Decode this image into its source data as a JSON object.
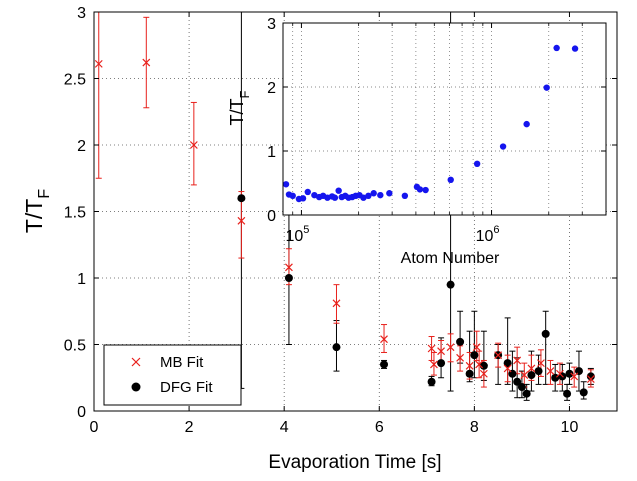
{
  "chart_data": [
    {
      "type": "scatter",
      "title": "",
      "xlabel": "Evaporation Time [s]",
      "ylabel": "T/T",
      "ylabel_subscript": "F",
      "xlim": [
        0,
        11
      ],
      "ylim": [
        0,
        3
      ],
      "xticks": [
        "0",
        "2",
        "4",
        "6",
        "8",
        "10"
      ],
      "yticks": [
        "0",
        "0.5",
        "1",
        "1.5",
        "2",
        "2.5",
        "3"
      ],
      "grid": true,
      "legend": "bottom-left",
      "colors": {
        "mb": "#e8211c",
        "dfg": "#000000"
      },
      "series": [
        {
          "name": "MB Fit",
          "marker": "x",
          "points": [
            {
              "x": 0.1,
              "y": 2.61,
              "lo": 1.75,
              "hi": 3.0
            },
            {
              "x": 1.1,
              "y": 2.62,
              "lo": 2.28,
              "hi": 2.96
            },
            {
              "x": 2.1,
              "y": 2.0,
              "lo": 1.7,
              "hi": 2.32
            },
            {
              "x": 3.1,
              "y": 1.43,
              "lo": 1.15,
              "hi": 1.65
            },
            {
              "x": 4.1,
              "y": 1.08,
              "lo": 0.95,
              "hi": 1.22
            },
            {
              "x": 5.1,
              "y": 0.81,
              "lo": 0.66,
              "hi": 0.95
            },
            {
              "x": 6.1,
              "y": 0.54,
              "lo": 0.44,
              "hi": 0.65
            },
            {
              "x": 7.1,
              "y": 0.47,
              "lo": 0.38,
              "hi": 0.56
            },
            {
              "x": 7.15,
              "y": 0.35,
              "lo": 0.27,
              "hi": 0.44
            },
            {
              "x": 7.3,
              "y": 0.45,
              "lo": 0.37,
              "hi": 0.53
            },
            {
              "x": 7.5,
              "y": 0.48,
              "lo": 0.37,
              "hi": 0.58
            },
            {
              "x": 7.7,
              "y": 0.4,
              "lo": 0.3,
              "hi": 0.49
            },
            {
              "x": 7.9,
              "y": 0.34,
              "lo": 0.24,
              "hi": 0.44
            },
            {
              "x": 8.05,
              "y": 0.48,
              "lo": 0.38,
              "hi": 0.6
            },
            {
              "x": 8.1,
              "y": 0.35,
              "lo": 0.25,
              "hi": 0.45
            },
            {
              "x": 8.2,
              "y": 0.28,
              "lo": 0.18,
              "hi": 0.38
            },
            {
              "x": 8.5,
              "y": 0.42,
              "lo": 0.33,
              "hi": 0.51
            },
            {
              "x": 8.7,
              "y": 0.32,
              "lo": 0.22,
              "hi": 0.42
            },
            {
              "x": 8.9,
              "y": 0.38,
              "lo": 0.28,
              "hi": 0.48
            },
            {
              "x": 9.05,
              "y": 0.27,
              "lo": 0.18,
              "hi": 0.36
            },
            {
              "x": 9.2,
              "y": 0.32,
              "lo": 0.23,
              "hi": 0.42
            },
            {
              "x": 9.4,
              "y": 0.36,
              "lo": 0.26,
              "hi": 0.46
            },
            {
              "x": 9.6,
              "y": 0.3,
              "lo": 0.2,
              "hi": 0.38
            },
            {
              "x": 9.8,
              "y": 0.28,
              "lo": 0.2,
              "hi": 0.36
            },
            {
              "x": 10.1,
              "y": 0.26,
              "lo": 0.18,
              "hi": 0.33
            },
            {
              "x": 10.45,
              "y": 0.24,
              "lo": 0.18,
              "hi": 0.31
            }
          ]
        },
        {
          "name": "DFG Fit",
          "marker": "circle",
          "points": [
            {
              "x": 3.1,
              "y": 1.6,
              "lo": 0.17,
              "hi": 3.0
            },
            {
              "x": 4.1,
              "y": 1.0,
              "lo": 0.5,
              "hi": 1.62
            },
            {
              "x": 5.1,
              "y": 0.48,
              "lo": 0.3,
              "hi": 0.68
            },
            {
              "x": 6.1,
              "y": 0.35,
              "lo": 0.32,
              "hi": 0.38
            },
            {
              "x": 7.1,
              "y": 0.22,
              "lo": 0.19,
              "hi": 0.26
            },
            {
              "x": 7.3,
              "y": 0.36,
              "lo": 0.25,
              "hi": 0.55
            },
            {
              "x": 7.5,
              "y": 0.95,
              "lo": 0.15,
              "hi": 3.0
            },
            {
              "x": 7.7,
              "y": 0.52,
              "lo": 0.36,
              "hi": 0.75
            },
            {
              "x": 7.9,
              "y": 0.28,
              "lo": 0.22,
              "hi": 0.6
            },
            {
              "x": 8.0,
              "y": 0.42,
              "lo": 0.25,
              "hi": 0.75
            },
            {
              "x": 8.2,
              "y": 0.34,
              "lo": 0.23,
              "hi": 0.6
            },
            {
              "x": 8.5,
              "y": 0.42,
              "lo": 0.2,
              "hi": 0.5
            },
            {
              "x": 8.7,
              "y": 0.36,
              "lo": 0.2,
              "hi": 0.7
            },
            {
              "x": 8.8,
              "y": 0.28,
              "lo": 0.15,
              "hi": 0.45
            },
            {
              "x": 8.9,
              "y": 0.22,
              "lo": 0.1,
              "hi": 0.4
            },
            {
              "x": 9.0,
              "y": 0.18,
              "lo": 0.1,
              "hi": 0.3
            },
            {
              "x": 9.1,
              "y": 0.13,
              "lo": 0.08,
              "hi": 0.2
            },
            {
              "x": 9.2,
              "y": 0.27,
              "lo": 0.15,
              "hi": 0.45
            },
            {
              "x": 9.35,
              "y": 0.3,
              "lo": 0.2,
              "hi": 0.42
            },
            {
              "x": 9.5,
              "y": 0.58,
              "lo": 0.2,
              "hi": 0.75
            },
            {
              "x": 9.7,
              "y": 0.25,
              "lo": 0.15,
              "hi": 0.35
            },
            {
              "x": 9.85,
              "y": 0.26,
              "lo": 0.15,
              "hi": 0.35
            },
            {
              "x": 9.95,
              "y": 0.13,
              "lo": 0.08,
              "hi": 0.2
            },
            {
              "x": 10.0,
              "y": 0.28,
              "lo": 0.2,
              "hi": 0.36
            },
            {
              "x": 10.2,
              "y": 0.3,
              "lo": 0.15,
              "hi": 0.45
            },
            {
              "x": 10.3,
              "y": 0.14,
              "lo": 0.09,
              "hi": 0.22
            },
            {
              "x": 10.45,
              "y": 0.26,
              "lo": 0.2,
              "hi": 0.32
            }
          ]
        }
      ]
    },
    {
      "type": "scatter",
      "title": "",
      "xlabel": "Atom Number",
      "ylabel": "T/T",
      "ylabel_subscript": "F",
      "xscale": "log",
      "xlim": [
        80000,
        4000000
      ],
      "ylim": [
        0,
        3
      ],
      "xticks": [
        {
          "value": 100000,
          "base": "10",
          "exponent": "5"
        },
        {
          "value": 1000000,
          "base": "10",
          "exponent": "6"
        }
      ],
      "yticks": [
        "0",
        "1",
        "2",
        "3"
      ],
      "grid": true,
      "colors": {
        "points": "#1515ee"
      },
      "series": [
        {
          "marker": "circle",
          "points": [
            {
              "x": 83000,
              "y": 0.48
            },
            {
              "x": 86000,
              "y": 0.32
            },
            {
              "x": 90000,
              "y": 0.3
            },
            {
              "x": 97000,
              "y": 0.25
            },
            {
              "x": 102000,
              "y": 0.26
            },
            {
              "x": 108000,
              "y": 0.36
            },
            {
              "x": 117000,
              "y": 0.31
            },
            {
              "x": 124000,
              "y": 0.28
            },
            {
              "x": 130000,
              "y": 0.3
            },
            {
              "x": 137000,
              "y": 0.27
            },
            {
              "x": 145000,
              "y": 0.29
            },
            {
              "x": 150000,
              "y": 0.27
            },
            {
              "x": 157000,
              "y": 0.38
            },
            {
              "x": 163000,
              "y": 0.28
            },
            {
              "x": 170000,
              "y": 0.3
            },
            {
              "x": 177000,
              "y": 0.27
            },
            {
              "x": 185000,
              "y": 0.28
            },
            {
              "x": 193000,
              "y": 0.3
            },
            {
              "x": 202000,
              "y": 0.31
            },
            {
              "x": 212000,
              "y": 0.27
            },
            {
              "x": 225000,
              "y": 0.3
            },
            {
              "x": 240000,
              "y": 0.34
            },
            {
              "x": 260000,
              "y": 0.31
            },
            {
              "x": 290000,
              "y": 0.34
            },
            {
              "x": 350000,
              "y": 0.3
            },
            {
              "x": 405000,
              "y": 0.44
            },
            {
              "x": 420000,
              "y": 0.4
            },
            {
              "x": 450000,
              "y": 0.39
            },
            {
              "x": 610000,
              "y": 0.55
            },
            {
              "x": 840000,
              "y": 0.8
            },
            {
              "x": 1150000,
              "y": 1.07
            },
            {
              "x": 1530000,
              "y": 1.42
            },
            {
              "x": 1950000,
              "y": 1.99
            },
            {
              "x": 2200000,
              "y": 2.61
            },
            {
              "x": 2750000,
              "y": 2.6
            }
          ]
        }
      ]
    }
  ]
}
